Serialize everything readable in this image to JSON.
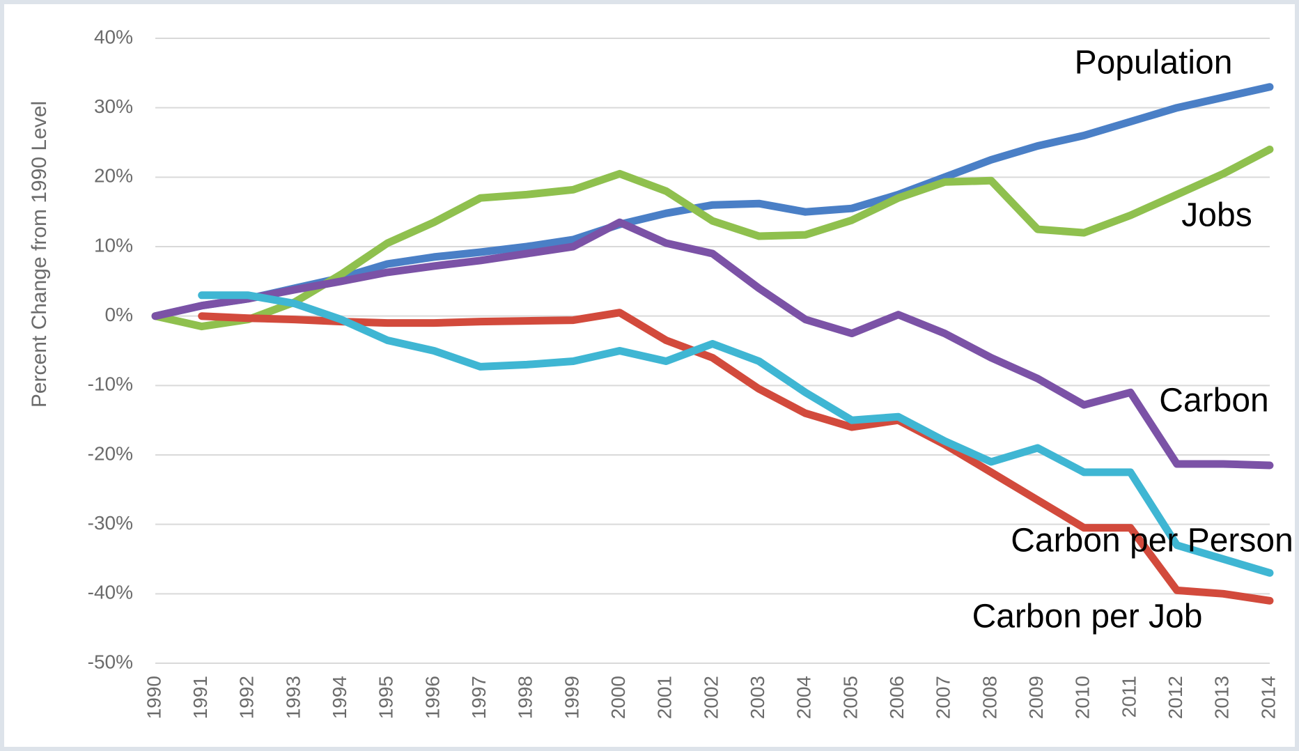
{
  "chart_data": {
    "type": "line",
    "ylabel": "Percent Change from 1990 Level",
    "categories": [
      "1990",
      "1991",
      "1992",
      "1993",
      "1994",
      "1995",
      "1996",
      "1997",
      "1998",
      "1999",
      "2000",
      "2001",
      "2002",
      "2003",
      "2004",
      "2005",
      "2006",
      "2007",
      "2008",
      "2009",
      "2010",
      "2011",
      "2012",
      "2013",
      "2014"
    ],
    "series": [
      {
        "name": "Population",
        "color": "#4a7fc6",
        "values": [
          0,
          1.5,
          2.5,
          4,
          5.5,
          7.5,
          8.5,
          9.2,
          10,
          11,
          13.2,
          14.8,
          16,
          16.2,
          15,
          15.5,
          17.5,
          20,
          22.5,
          24.5,
          26,
          28,
          30,
          31.5,
          33
        ]
      },
      {
        "name": "Jobs",
        "color": "#8fc04e",
        "values": [
          0,
          -1.5,
          -0.5,
          2,
          6,
          10.5,
          13.5,
          17,
          17.5,
          18.2,
          20.5,
          18,
          13.7,
          11.5,
          11.7,
          13.8,
          17,
          19.3,
          19.5,
          12.5,
          12,
          14.5,
          17.5,
          20.5,
          24
        ]
      },
      {
        "name": "Carbon",
        "color": "#7b52a6",
        "values": [
          0,
          1.5,
          2.5,
          3.8,
          5,
          6.3,
          7.2,
          8,
          9,
          10,
          13.5,
          10.5,
          9,
          4,
          -0.5,
          -2.5,
          0.2,
          -2.5,
          -6,
          -9,
          -12.8,
          -11,
          -21.3,
          -21.3,
          -21.5
        ]
      },
      {
        "name": "Carbon per Person",
        "color": "#d24a3c",
        "values": [
          null,
          0,
          -0.3,
          -0.5,
          -0.8,
          -1,
          -1,
          -0.8,
          -0.7,
          -0.6,
          0.5,
          -3.5,
          -6,
          -10.5,
          -14,
          -16,
          -15,
          -18.5,
          -22.5,
          -26.5,
          -30.5,
          -30.5,
          -39.5,
          -40,
          -41
        ]
      },
      {
        "name": "Carbon per Job",
        "color": "#3fb6d3",
        "values": [
          null,
          3,
          3,
          1.8,
          -0.5,
          -3.5,
          -5,
          -7.3,
          -7,
          -6.5,
          -5,
          -6.5,
          -4,
          -6.5,
          -11,
          -15,
          -14.5,
          -18,
          -21,
          -19,
          -22.5,
          -22.5,
          -33,
          -35,
          -37
        ]
      }
    ],
    "ylim": [
      -50,
      40
    ],
    "yticks": [
      {
        "value": -50,
        "label": "-50%"
      },
      {
        "value": -40,
        "label": "-40%"
      },
      {
        "value": -30,
        "label": "-30%"
      },
      {
        "value": -20,
        "label": "-20%"
      },
      {
        "value": -10,
        "label": "-10%"
      },
      {
        "value": 0,
        "label": "0%"
      },
      {
        "value": 10,
        "label": "10%"
      },
      {
        "value": 20,
        "label": "20%"
      },
      {
        "value": 30,
        "label": "30%"
      },
      {
        "value": 40,
        "label": "40%"
      }
    ],
    "grid": true
  }
}
